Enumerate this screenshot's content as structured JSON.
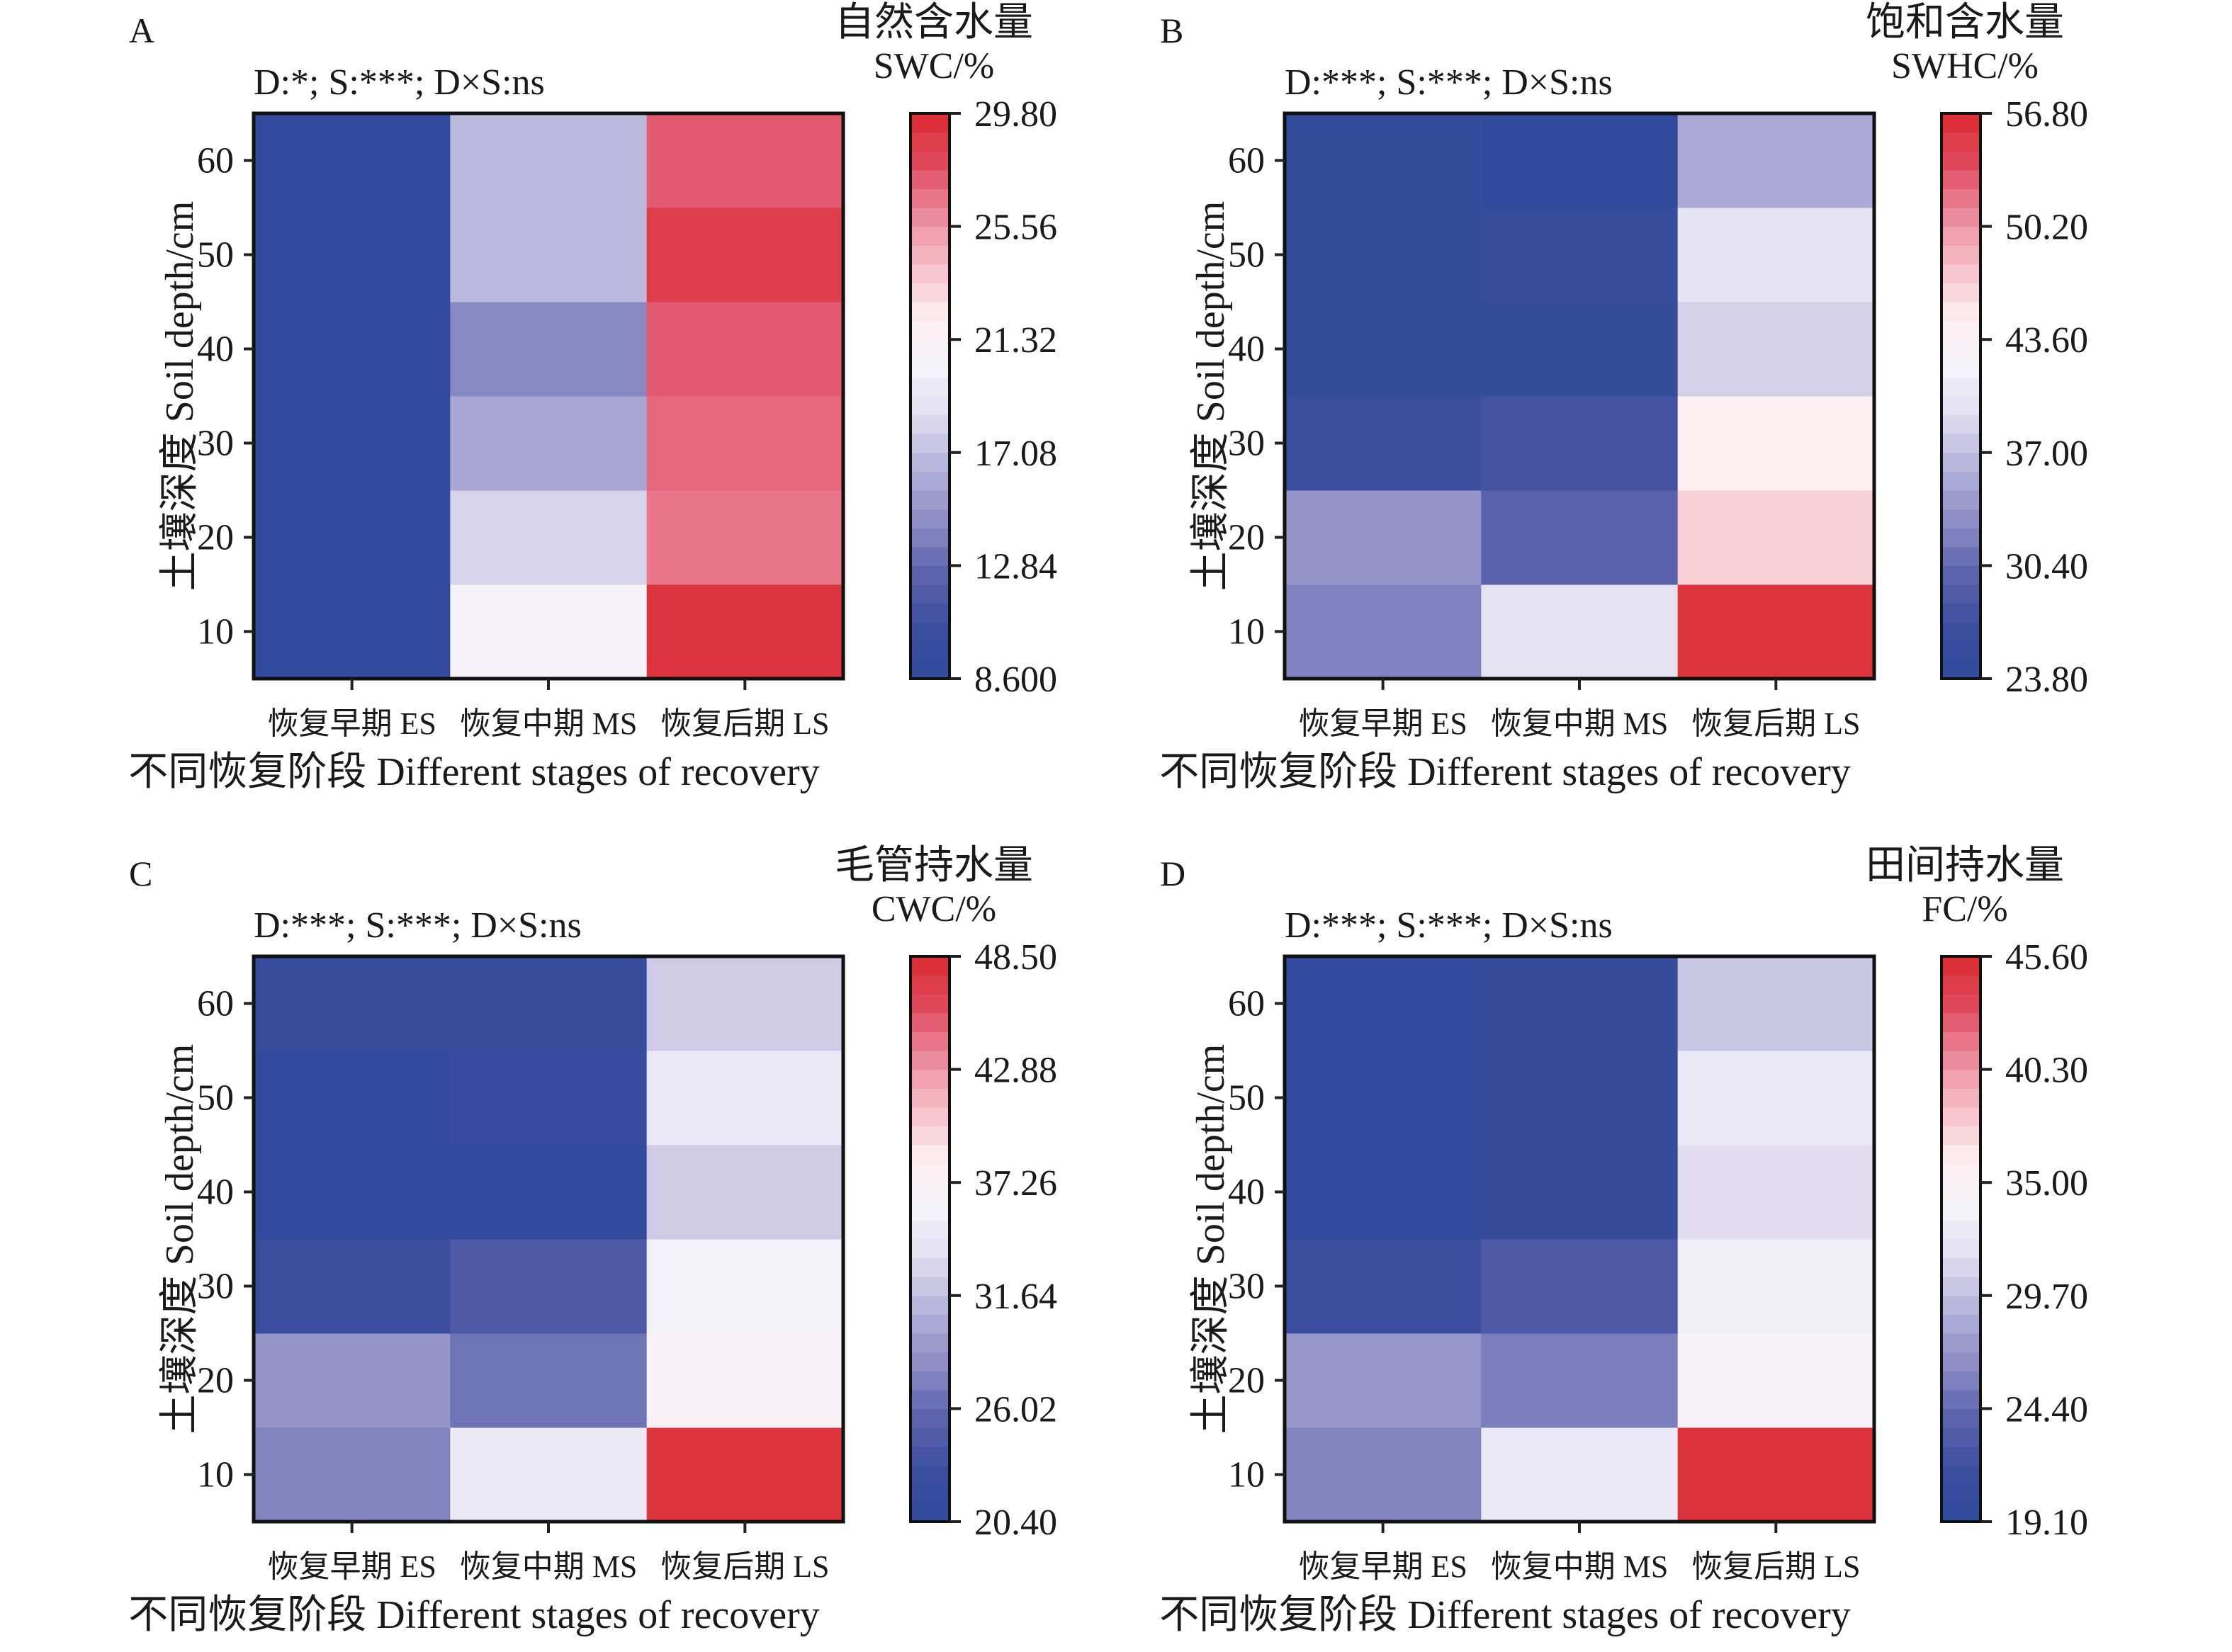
{
  "figure": {
    "x_tick_labels": [
      "恢复早期 ES",
      "恢复中期 MS",
      "恢复后期 LS"
    ],
    "x_axis_title": "不同恢复阶段 Different stages of recovery",
    "y_axis_title": "土壤深度 Soil depth/cm",
    "y_tick_labels": [
      "10",
      "20",
      "30",
      "40",
      "50",
      "60"
    ],
    "colormap": [
      "#2f4b9b",
      "#3d4da0",
      "#5a62ad",
      "#8a8ac3",
      "#b1aed9",
      "#dcd8ec",
      "#f4f3fa",
      "#fdf0f2",
      "#f6c1ca",
      "#ec8c9e",
      "#e04a5e",
      "#da2a2f"
    ]
  },
  "chart_data": [
    {
      "type": "heatmap",
      "panel": "A",
      "title": "D:*; S:***; D×S:ns",
      "colorbar_title": [
        "自然含水量",
        "SWC/%"
      ],
      "colorbar_ticks": [
        "29.80",
        "25.56",
        "21.32",
        "17.08",
        "12.84",
        "8.600"
      ],
      "vmin": 8.6,
      "vmax": 29.8,
      "x": [
        "ES",
        "MS",
        "LS"
      ],
      "y": [
        10,
        20,
        30,
        40,
        50,
        60
      ],
      "values": [
        [
          9.0,
          20.5,
          29.2
        ],
        [
          9.0,
          18.0,
          26.6
        ],
        [
          9.0,
          15.9,
          27.0
        ],
        [
          9.0,
          14.3,
          27.4
        ],
        [
          9.0,
          16.8,
          28.6
        ],
        [
          9.0,
          16.8,
          27.4
        ]
      ]
    },
    {
      "type": "heatmap",
      "panel": "B",
      "title": "D:***; S:***; D×S:ns",
      "colorbar_title": [
        "饱和含水量",
        "SWHC/%"
      ],
      "colorbar_ticks": [
        "56.80",
        "50.20",
        "43.60",
        "37.00",
        "30.40",
        "23.80"
      ],
      "vmin": 23.8,
      "vmax": 56.8,
      "x": [
        "ES",
        "MS",
        "LS"
      ],
      "y": [
        10,
        20,
        30,
        40,
        50,
        60
      ],
      "values": [
        [
          32.2,
          39.8,
          56.0
        ],
        [
          33.6,
          29.6,
          46.8
        ],
        [
          26.4,
          27.6,
          44.6
        ],
        [
          24.6,
          24.6,
          38.2
        ],
        [
          24.6,
          25.2,
          40.0
        ],
        [
          24.6,
          24.2,
          35.4
        ]
      ]
    },
    {
      "type": "heatmap",
      "panel": "C",
      "title": "D:***; S:***; D×S:ns",
      "colorbar_title": [
        "毛管持水量",
        "CWC/%"
      ],
      "colorbar_ticks": [
        "48.50",
        "42.88",
        "37.26",
        "31.64",
        "26.02",
        "20.40"
      ],
      "vmin": 20.4,
      "vmax": 48.5,
      "x": [
        "ES",
        "MS",
        "LS"
      ],
      "y": [
        10,
        20,
        30,
        40,
        50,
        60
      ],
      "values": [
        [
          27.6,
          34.9,
          47.8
        ],
        [
          28.8,
          26.6,
          37.0
        ],
        [
          22.4,
          24.4,
          35.6
        ],
        [
          21.0,
          21.0,
          32.4
        ],
        [
          21.0,
          22.2,
          34.6
        ],
        [
          22.0,
          22.0,
          32.4
        ]
      ]
    },
    {
      "type": "heatmap",
      "panel": "D",
      "title": "D:***; S:***; D×S:ns",
      "colorbar_title": [
        "田间持水量",
        "FC/%"
      ],
      "colorbar_ticks": [
        "45.60",
        "40.30",
        "35.00",
        "29.70",
        "24.40",
        "19.10"
      ],
      "vmin": 19.1,
      "vmax": 45.6,
      "x": [
        "ES",
        "MS",
        "LS"
      ],
      "y": [
        10,
        20,
        30,
        40,
        50,
        60
      ],
      "values": [
        [
          25.9,
          32.7,
          45.0
        ],
        [
          27.1,
          25.6,
          34.4
        ],
        [
          21.0,
          22.8,
          33.2
        ],
        [
          19.7,
          20.2,
          31.6
        ],
        [
          19.7,
          20.2,
          32.6
        ],
        [
          19.9,
          20.2,
          30.2
        ]
      ]
    }
  ]
}
